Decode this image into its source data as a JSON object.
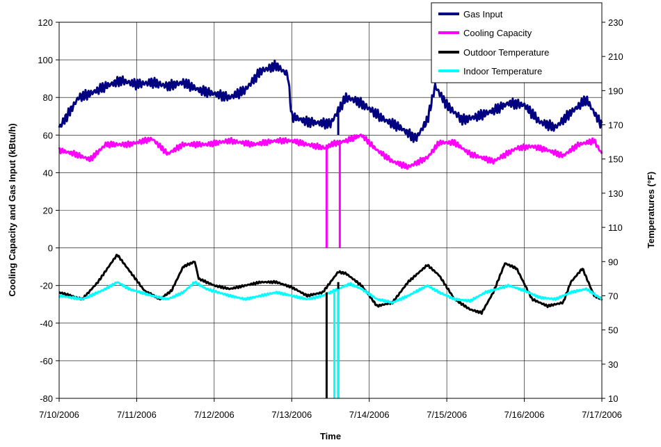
{
  "chart_data": {
    "type": "line",
    "title": "",
    "xlabel": "Time",
    "ylabel_left": "Cooling Capacity and Gas Input (kBtu/h)",
    "ylabel_right": "Temperatures (°F)",
    "x_range": [
      "7/10/2006",
      "7/17/2006"
    ],
    "x_ticks": [
      "7/10/2006",
      "7/11/2006",
      "7/12/2006",
      "7/13/2006",
      "7/14/2006",
      "7/15/2006",
      "7/16/2006",
      "7/17/2006"
    ],
    "y_left_range": [
      -80,
      120
    ],
    "y_left_ticks": [
      "-80",
      "-60",
      "-40",
      "-20",
      "0",
      "20",
      "40",
      "60",
      "80",
      "100",
      "120"
    ],
    "y_right_range": [
      10,
      230
    ],
    "y_right_ticks": [
      "10",
      "30",
      "50",
      "70",
      "90",
      "110",
      "130",
      "150",
      "170",
      "190",
      "210",
      "230"
    ],
    "grid": true,
    "legend_position": "top-right",
    "series": [
      {
        "name": "Gas Input",
        "axis": "left",
        "color": "#000080",
        "x": [
          0,
          0.1,
          0.25,
          0.4,
          0.6,
          0.8,
          1.0,
          1.2,
          1.4,
          1.6,
          1.8,
          2.0,
          2.2,
          2.4,
          2.6,
          2.8,
          2.95,
          3.0,
          3.2,
          3.5,
          3.7,
          3.85,
          4.0,
          4.2,
          4.4,
          4.6,
          4.75,
          4.85,
          5.0,
          5.2,
          5.4,
          5.6,
          5.8,
          6.0,
          6.2,
          6.4,
          6.6,
          6.8,
          7.0
        ],
        "y": [
          64,
          70,
          80,
          82,
          86,
          89,
          87,
          88,
          86,
          88,
          84,
          82,
          80,
          84,
          94,
          97,
          92,
          70,
          67,
          66,
          80,
          78,
          74,
          68,
          64,
          58,
          68,
          86,
          76,
          68,
          70,
          73,
          77,
          76,
          67,
          64,
          72,
          79,
          65
        ]
      },
      {
        "name": "Cooling Capacity",
        "axis": "left",
        "color": "#ff00ff",
        "x": [
          0,
          0.2,
          0.4,
          0.6,
          0.9,
          1.2,
          1.4,
          1.6,
          1.9,
          2.2,
          2.5,
          2.8,
          3.0,
          3.2,
          3.45,
          3.5,
          3.6,
          3.7,
          3.9,
          4.1,
          4.3,
          4.5,
          4.75,
          4.9,
          5.1,
          5.3,
          5.6,
          5.9,
          6.1,
          6.3,
          6.5,
          6.7,
          6.9,
          7.0
        ],
        "y": [
          52,
          50,
          47,
          55,
          55,
          58,
          50,
          55,
          55,
          57,
          55,
          57,
          57,
          55,
          53,
          55,
          56,
          57,
          60,
          52,
          46,
          43,
          48,
          56,
          56,
          50,
          46,
          53,
          54,
          52,
          49,
          55,
          57,
          50
        ]
      },
      {
        "name": "Outdoor Temperature",
        "axis": "right",
        "color": "#000000",
        "x": [
          0,
          0.3,
          0.5,
          0.7,
          0.75,
          0.9,
          1.1,
          1.3,
          1.45,
          1.6,
          1.75,
          1.8,
          2.0,
          2.2,
          2.4,
          2.6,
          2.8,
          3.0,
          3.2,
          3.4,
          3.6,
          3.7,
          3.9,
          4.1,
          4.3,
          4.5,
          4.75,
          4.9,
          5.1,
          5.3,
          5.45,
          5.6,
          5.75,
          5.9,
          6.1,
          6.3,
          6.5,
          6.6,
          6.75,
          6.9,
          7.0
        ],
        "y": [
          72,
          68,
          78,
          91,
          94,
          85,
          73,
          68,
          73,
          87,
          90,
          80,
          76,
          74,
          76,
          78,
          78,
          75,
          70,
          72,
          84,
          83,
          76,
          64,
          66,
          78,
          88,
          82,
          68,
          62,
          60,
          72,
          89,
          86,
          68,
          64,
          66,
          78,
          86,
          70,
          68
        ]
      },
      {
        "name": "Indoor Temperature",
        "axis": "right",
        "color": "#00ffff",
        "x": [
          0,
          0.3,
          0.6,
          0.75,
          0.9,
          1.2,
          1.4,
          1.6,
          1.75,
          1.9,
          2.2,
          2.4,
          2.6,
          2.8,
          3.0,
          3.2,
          3.4,
          3.6,
          3.75,
          3.9,
          4.1,
          4.3,
          4.5,
          4.75,
          4.9,
          5.1,
          5.3,
          5.5,
          5.8,
          6.0,
          6.2,
          6.4,
          6.6,
          6.8,
          7.0
        ],
        "y": [
          70,
          68,
          74,
          78,
          74,
          70,
          68,
          72,
          78,
          74,
          70,
          68,
          70,
          72,
          70,
          68,
          70,
          74,
          77,
          74,
          68,
          66,
          70,
          76,
          72,
          68,
          67,
          72,
          76,
          73,
          69,
          68,
          72,
          74,
          68
        ]
      }
    ],
    "annotations_note": ""
  },
  "legend": {
    "items": [
      "Gas Input",
      "Cooling Capacity",
      "Outdoor Temperature",
      "Indoor Temperature"
    ]
  }
}
